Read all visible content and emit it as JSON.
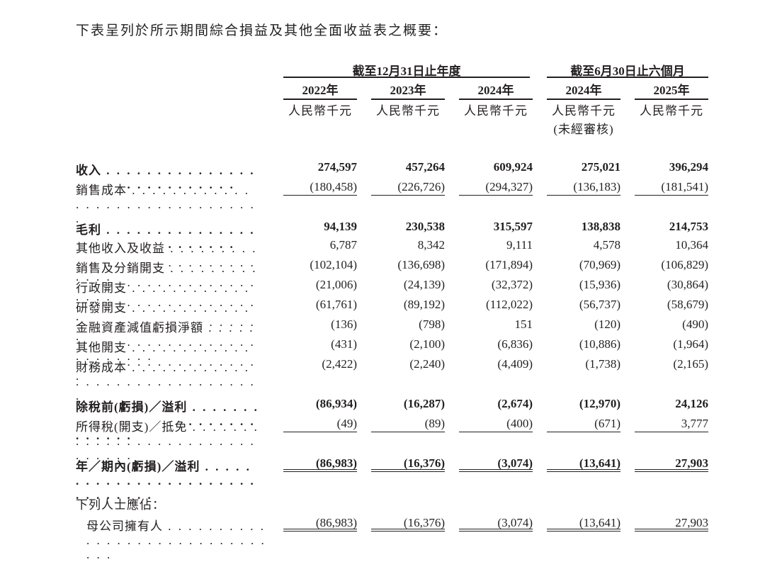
{
  "intro": "下表呈列於所示期間綜合損益及其他全面收益表之概要：",
  "header": {
    "groups": [
      "截至12月31日止年度",
      "截至6月30日止六個月"
    ],
    "years": [
      "2022年",
      "2023年",
      "2024年",
      "2024年",
      "2025年"
    ],
    "unit": "人民幣千元",
    "unaudited_note": "(未經審核)"
  },
  "rows": [
    {
      "label": "收入",
      "bold": true,
      "values": [
        "274,597",
        "457,264",
        "609,924",
        "275,021",
        "396,294"
      ]
    },
    {
      "label": "銷售成本",
      "underline": "single",
      "values": [
        "(180,458)",
        "(226,726)",
        "(294,327)",
        "(136,183)",
        "(181,541)"
      ]
    },
    {
      "label": "毛利",
      "bold": true,
      "values": [
        "94,139",
        "230,538",
        "315,597",
        "138,838",
        "214,753"
      ]
    },
    {
      "label": "其他收入及收益",
      "values": [
        "6,787",
        "8,342",
        "9,111",
        "4,578",
        "10,364"
      ]
    },
    {
      "label": "銷售及分銷開支",
      "values": [
        "(102,104)",
        "(136,698)",
        "(171,894)",
        "(70,969)",
        "(106,829)"
      ]
    },
    {
      "label": "行政開支",
      "values": [
        "(21,006)",
        "(24,139)",
        "(32,372)",
        "(15,936)",
        "(30,864)"
      ]
    },
    {
      "label": "研發開支",
      "values": [
        "(61,761)",
        "(89,192)",
        "(112,022)",
        "(56,737)",
        "(58,679)"
      ]
    },
    {
      "label": "金融資產減值虧損淨額",
      "values": [
        "(136)",
        "(798)",
        "151",
        "(120)",
        "(490)"
      ]
    },
    {
      "label": "其他開支",
      "values": [
        "(431)",
        "(2,100)",
        "(6,836)",
        "(10,886)",
        "(1,964)"
      ]
    },
    {
      "label": "財務成本",
      "values": [
        "(2,422)",
        "(2,240)",
        "(4,409)",
        "(1,738)",
        "(2,165)"
      ]
    },
    {
      "label": "除稅前(虧損)／溢利",
      "bold": true,
      "values": [
        "(86,934)",
        "(16,287)",
        "(2,674)",
        "(12,970)",
        "24,126"
      ]
    },
    {
      "label": "所得稅(開支)／抵免",
      "underline": "single",
      "values": [
        "(49)",
        "(89)",
        "(400)",
        "(671)",
        "3,777"
      ]
    },
    {
      "label": "年／期內(虧損)／溢利",
      "bold": true,
      "underline": "double",
      "values": [
        "(86,983)",
        "(16,376)",
        "(3,074)",
        "(13,641)",
        "27,903"
      ]
    },
    {
      "label": "母公司擁有人",
      "indent": true,
      "underline": "double",
      "values": [
        "(86,983)",
        "(16,376)",
        "(3,074)",
        "(13,641)",
        "27,903"
      ]
    }
  ],
  "attributable_heading": "下列人士應佔："
}
